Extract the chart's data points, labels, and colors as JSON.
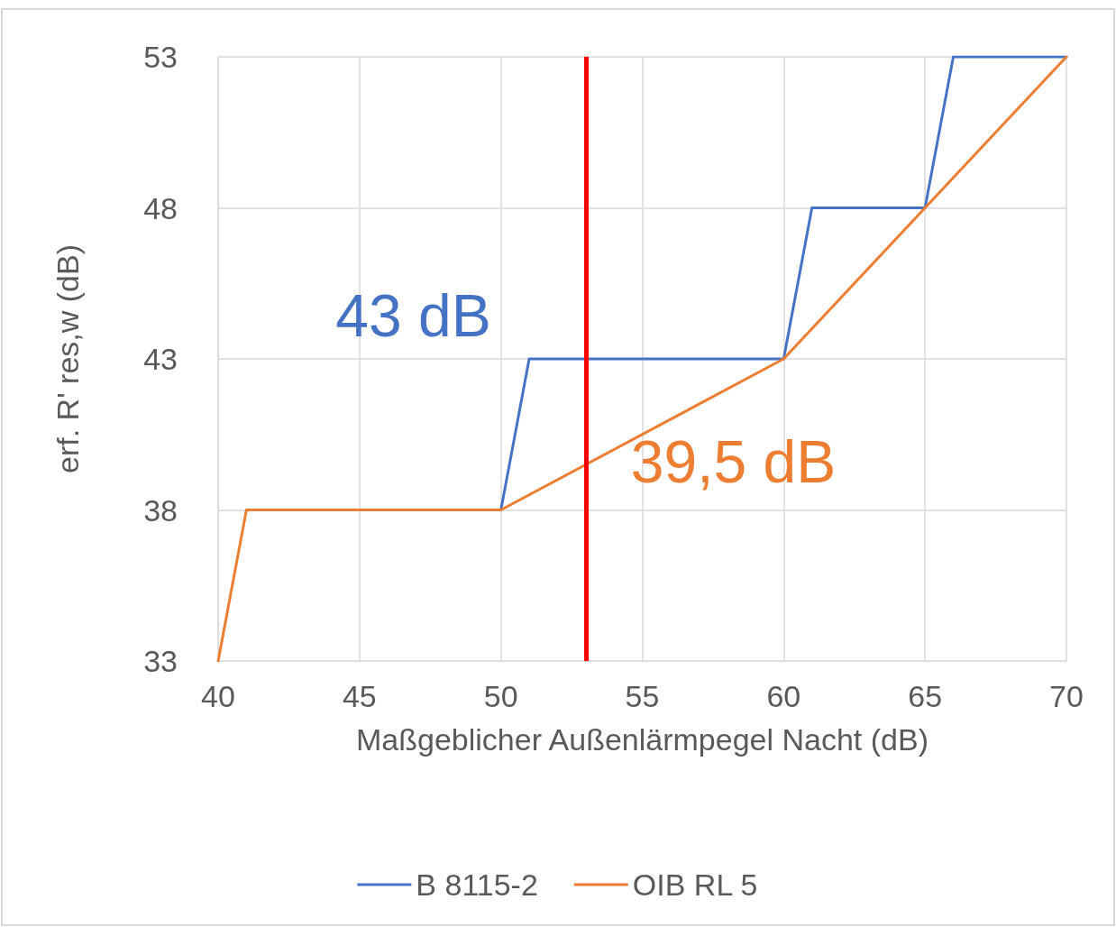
{
  "chart_data": {
    "type": "line",
    "xlabel": "Maßgeblicher Außenlärmpegel Nacht (dB)",
    "ylabel": "erf. R' res,w (dB)",
    "series": [
      {
        "name": "B 8115-2",
        "color": "#4472c4",
        "x": [
          50,
          51,
          60,
          61,
          65,
          66,
          70
        ],
        "values": [
          38,
          43,
          43,
          48,
          48,
          53,
          53
        ]
      },
      {
        "name": "OIB RL 5",
        "color": "#ed7d31",
        "x": [
          40,
          41,
          50,
          60,
          65,
          70
        ],
        "values": [
          33,
          38,
          38,
          43,
          48,
          53
        ]
      }
    ],
    "xlim": [
      40,
      70
    ],
    "xticks": [
      40,
      45,
      50,
      55,
      60,
      65,
      70
    ],
    "ylim": [
      33,
      53
    ],
    "yticks": [
      33,
      38,
      43,
      48,
      53
    ],
    "ref_lines": [
      {
        "axis": "x",
        "value": 53,
        "color": "#ff0000",
        "line_style": "solid"
      }
    ],
    "annotations": [
      {
        "text": "43 dB",
        "x": 53,
        "y": 43
      },
      {
        "text": "39,5 dB",
        "x": 53,
        "y": 39.5
      }
    ],
    "grid": true,
    "legend": "bottom",
    "marker": "none",
    "line_style": "solid"
  }
}
